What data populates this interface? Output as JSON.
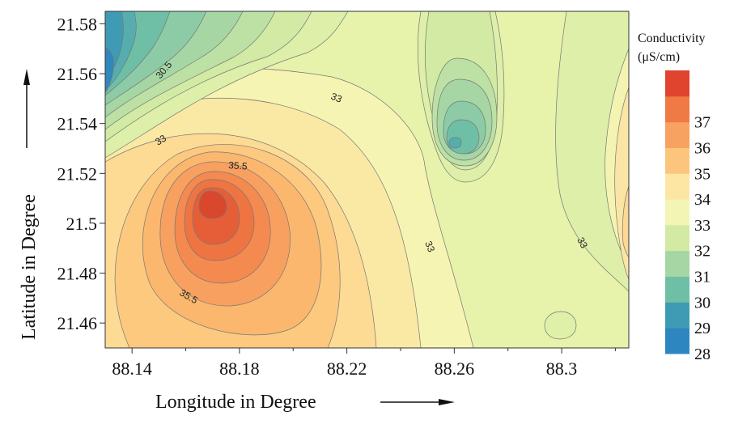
{
  "chart_data": {
    "type": "contour",
    "xlabel": "Longitude in Degree",
    "ylabel": "Latitude in Degree",
    "xlim": [
      88.13,
      88.325
    ],
    "ylim": [
      21.45,
      21.585
    ],
    "x_ticks": [
      "88.14",
      "88.18",
      "88.22",
      "88.26",
      "88.3"
    ],
    "y_ticks": [
      "21.46",
      "21.48",
      "21.5",
      "21.52",
      "21.54",
      "21.56",
      "21.58"
    ],
    "legend": {
      "title_line1": "Conductivity",
      "title_line2": "(μS/cm)",
      "levels": [
        28,
        29,
        30,
        31,
        32,
        33,
        34,
        35,
        36,
        37
      ],
      "colors": [
        "#2e86c1",
        "#3f9bb3",
        "#6fbfa6",
        "#a5d6a4",
        "#d2eaa4",
        "#f3f5b4",
        "#fde6a4",
        "#fcc57d",
        "#f8a262",
        "#f07a45",
        "#e0442f"
      ]
    },
    "contour_labels": [
      "30.5",
      "33",
      "33",
      "35.5",
      "35.5",
      "33",
      "33"
    ],
    "features": [
      {
        "kind": "maximum",
        "x": 88.168,
        "y": 21.505,
        "value": 37.6
      },
      {
        "kind": "minimum",
        "x": 88.262,
        "y": 21.532,
        "value": 29.6
      },
      {
        "kind": "minimum",
        "x": 88.13,
        "y": 21.56,
        "value": 28.5
      },
      {
        "kind": "minimum",
        "x": 88.297,
        "y": 21.459,
        "value": 32.5
      }
    ]
  }
}
